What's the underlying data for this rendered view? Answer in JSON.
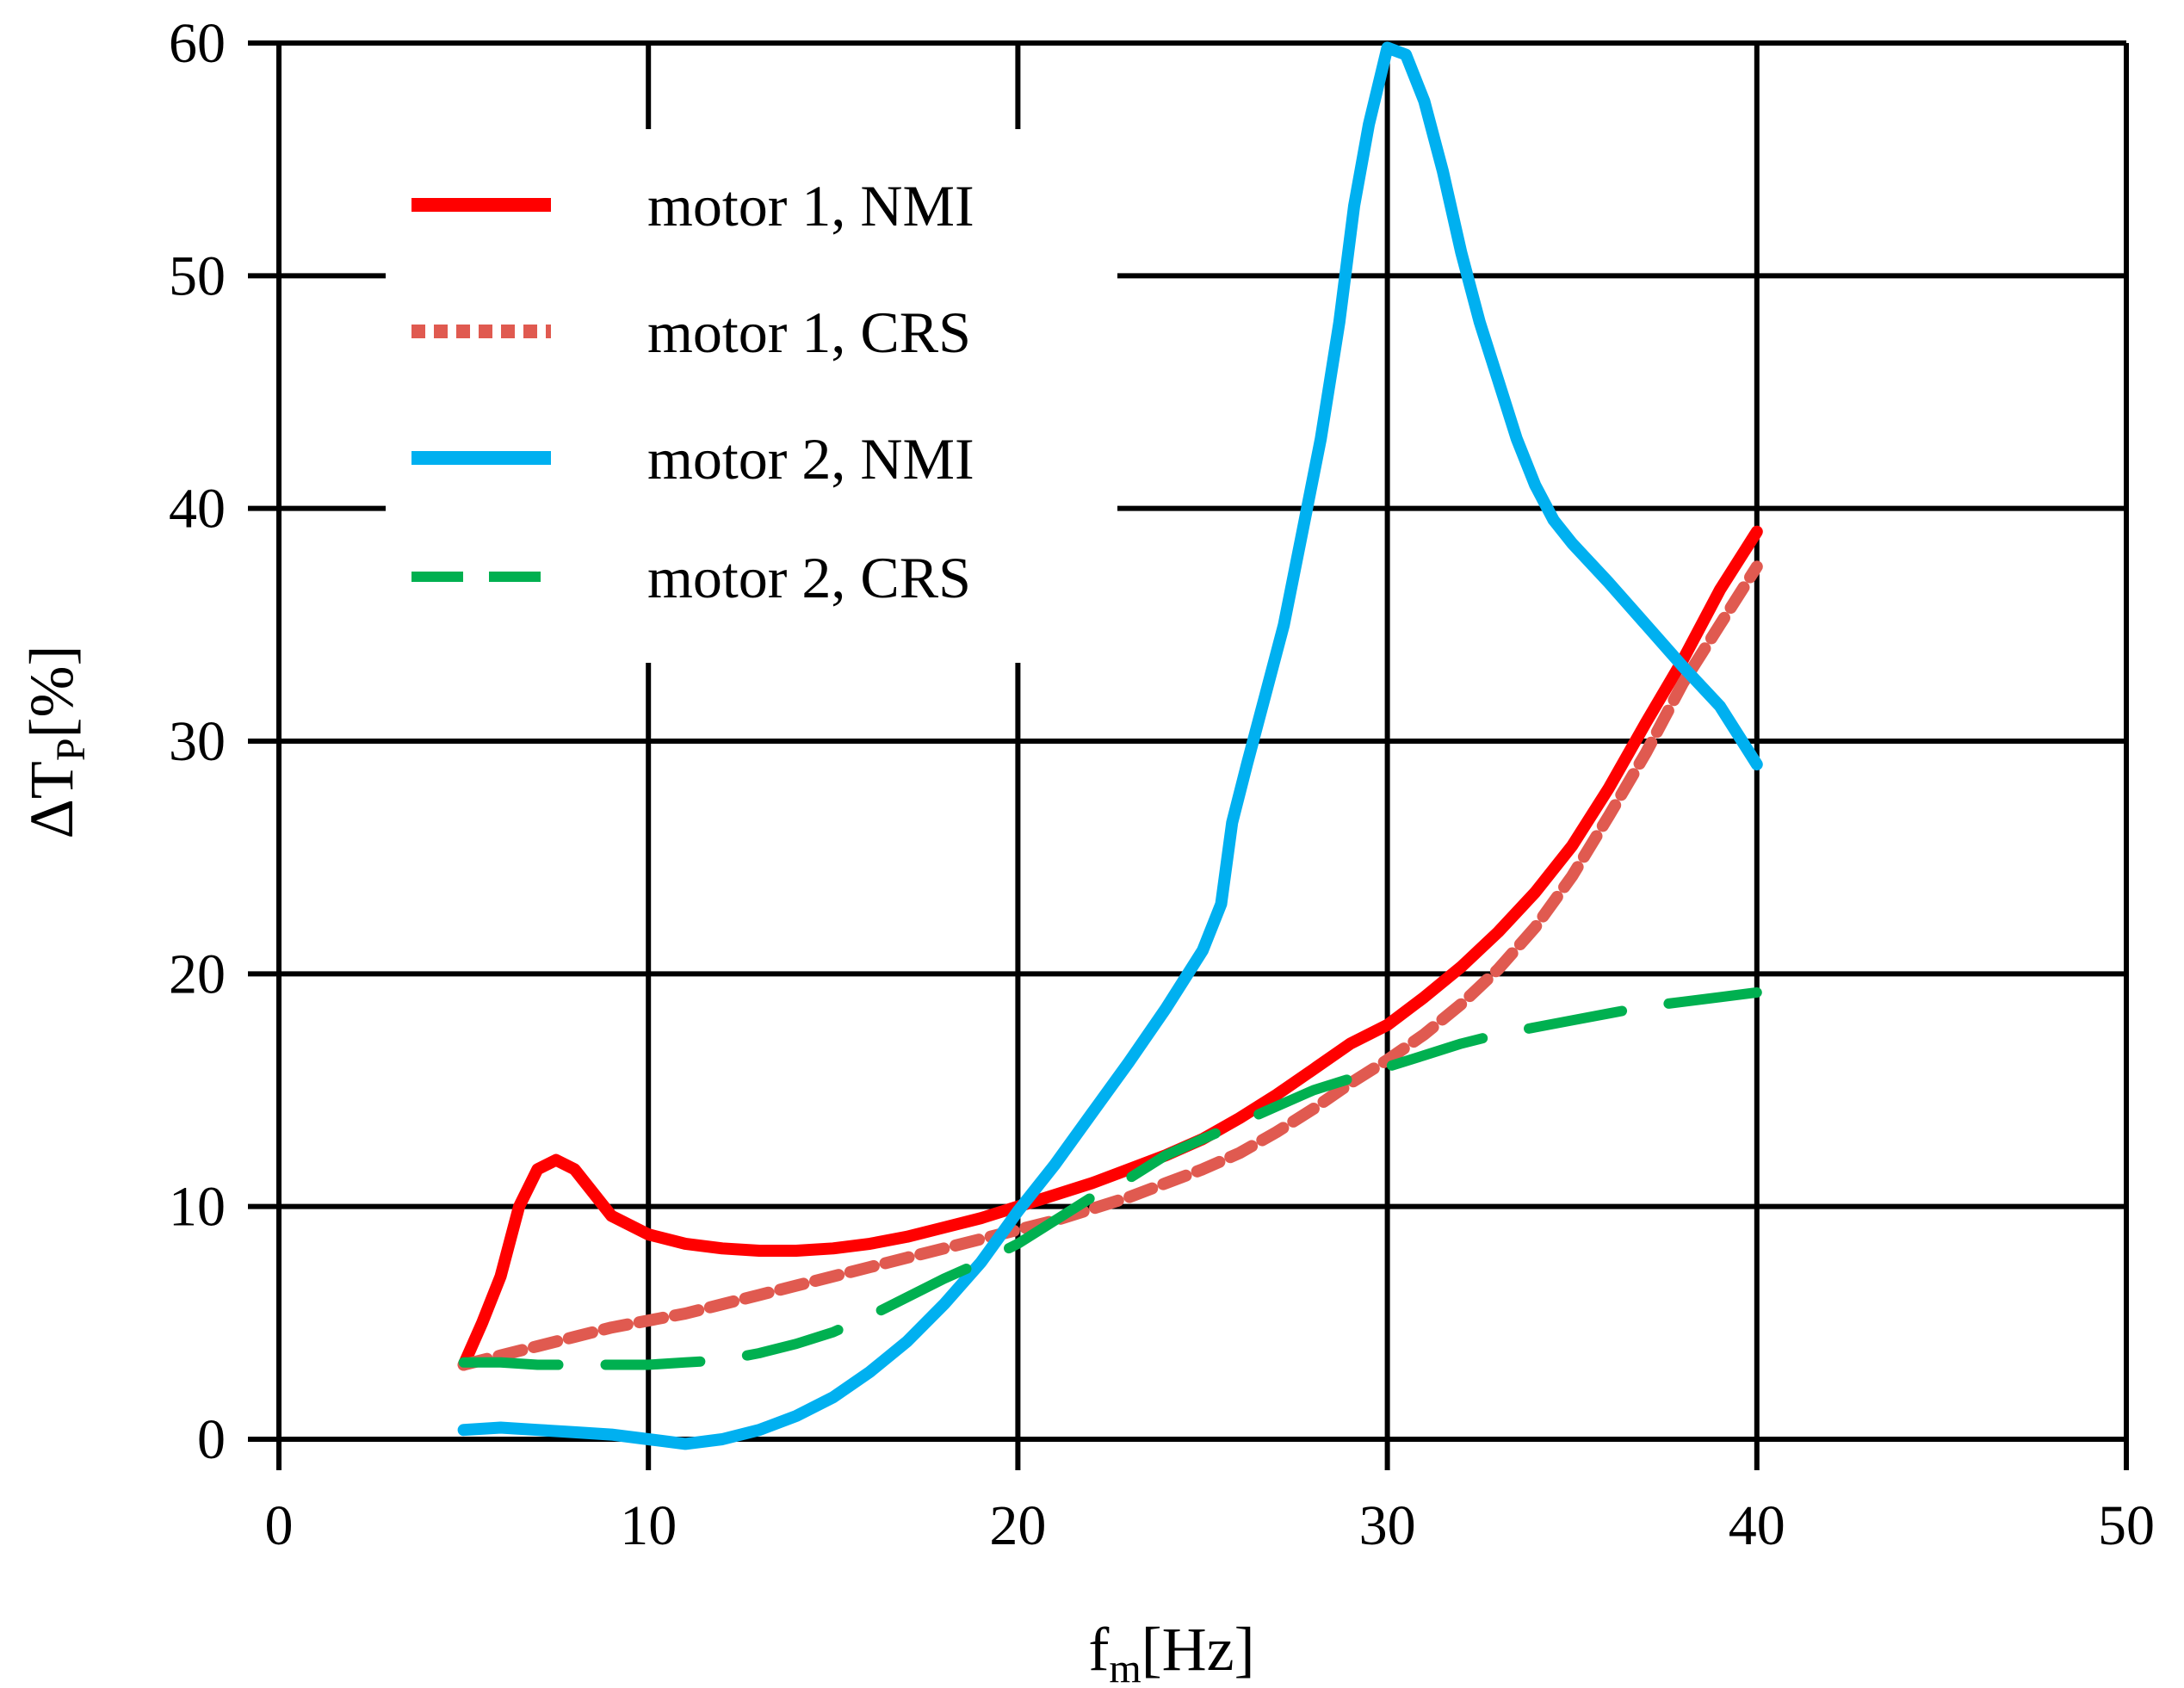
{
  "chart_data": {
    "type": "line",
    "title": "",
    "xlabel": {
      "main": "f",
      "sub": "m",
      "unit": "[Hz]"
    },
    "ylabel": {
      "prefix": "ΔT",
      "sub": "P",
      "unit": "[%]"
    },
    "xlim": [
      0,
      50
    ],
    "ylim": [
      0,
      60
    ],
    "grid": true,
    "x_ticks": [
      0,
      10,
      20,
      30,
      40,
      50
    ],
    "y_ticks": [
      0,
      10,
      20,
      30,
      40,
      50,
      60
    ],
    "legend_position": "top-left",
    "series": [
      {
        "name": "motor 1, NMI",
        "color": "#ff0000",
        "style": "solid",
        "points": [
          [
            5,
            3.2
          ],
          [
            5.5,
            5
          ],
          [
            6,
            7
          ],
          [
            6.5,
            10
          ],
          [
            7,
            11.6
          ],
          [
            7.5,
            12
          ],
          [
            8,
            11.6
          ],
          [
            8.5,
            10.6
          ],
          [
            9,
            9.6
          ],
          [
            10,
            8.8
          ],
          [
            11,
            8.4
          ],
          [
            12,
            8.2
          ],
          [
            13,
            8.1
          ],
          [
            14,
            8.1
          ],
          [
            15,
            8.2
          ],
          [
            16,
            8.4
          ],
          [
            17,
            8.7
          ],
          [
            18,
            9.1
          ],
          [
            19,
            9.5
          ],
          [
            20,
            10
          ],
          [
            21,
            10.5
          ],
          [
            22,
            11
          ],
          [
            23,
            11.6
          ],
          [
            24,
            12.2
          ],
          [
            25,
            12.9
          ],
          [
            26,
            13.8
          ],
          [
            27,
            14.8
          ],
          [
            28,
            15.9
          ],
          [
            29,
            17
          ],
          [
            30,
            17.8
          ],
          [
            31,
            19
          ],
          [
            32,
            20.3
          ],
          [
            33,
            21.8
          ],
          [
            34,
            23.5
          ],
          [
            35,
            25.5
          ],
          [
            36,
            28
          ],
          [
            37,
            30.8
          ],
          [
            38,
            33.5
          ],
          [
            39,
            36.5
          ],
          [
            40,
            39
          ]
        ]
      },
      {
        "name": "motor 1, CRS",
        "color": "#e05a50",
        "style": "dotted",
        "points": [
          [
            5,
            3.2
          ],
          [
            6,
            3.6
          ],
          [
            7,
            4
          ],
          [
            8,
            4.4
          ],
          [
            9,
            4.8
          ],
          [
            10,
            5.1
          ],
          [
            11,
            5.4
          ],
          [
            12,
            5.8
          ],
          [
            13,
            6.2
          ],
          [
            14,
            6.6
          ],
          [
            15,
            7
          ],
          [
            16,
            7.4
          ],
          [
            17,
            7.8
          ],
          [
            18,
            8.2
          ],
          [
            19,
            8.6
          ],
          [
            20,
            9
          ],
          [
            21,
            9.4
          ],
          [
            22,
            9.9
          ],
          [
            23,
            10.4
          ],
          [
            24,
            11
          ],
          [
            25,
            11.6
          ],
          [
            26,
            12.3
          ],
          [
            27,
            13.2
          ],
          [
            28,
            14.2
          ],
          [
            29,
            15.3
          ],
          [
            30,
            16.3
          ],
          [
            31,
            17.4
          ],
          [
            32,
            18.7
          ],
          [
            33,
            20.2
          ],
          [
            34,
            22
          ],
          [
            35,
            24.2
          ],
          [
            36,
            26.8
          ],
          [
            37,
            29.5
          ],
          [
            38,
            32.5
          ],
          [
            39,
            35
          ],
          [
            40,
            37.5
          ]
        ]
      },
      {
        "name": "motor 2, NMI",
        "color": "#00b0f0",
        "style": "solid",
        "points": [
          [
            5,
            0.4
          ],
          [
            6,
            0.5
          ],
          [
            7,
            0.4
          ],
          [
            8,
            0.3
          ],
          [
            9,
            0.2
          ],
          [
            10,
            0
          ],
          [
            11,
            -0.2
          ],
          [
            12,
            0
          ],
          [
            13,
            0.4
          ],
          [
            14,
            1
          ],
          [
            15,
            1.8
          ],
          [
            16,
            2.9
          ],
          [
            17,
            4.2
          ],
          [
            18,
            5.8
          ],
          [
            19,
            7.6
          ],
          [
            20,
            9.8
          ],
          [
            21,
            11.8
          ],
          [
            22,
            14
          ],
          [
            23,
            16.2
          ],
          [
            24,
            18.5
          ],
          [
            25,
            21
          ],
          [
            25.5,
            23
          ],
          [
            25.8,
            26.5
          ],
          [
            26.2,
            29
          ],
          [
            26.7,
            32
          ],
          [
            27.2,
            35
          ],
          [
            27.7,
            39
          ],
          [
            28.2,
            43
          ],
          [
            28.7,
            48
          ],
          [
            29.1,
            53
          ],
          [
            29.5,
            56.5
          ],
          [
            30,
            59.8
          ],
          [
            30.5,
            59.5
          ],
          [
            31,
            57.5
          ],
          [
            31.5,
            54.5
          ],
          [
            32,
            51
          ],
          [
            32.5,
            48
          ],
          [
            33,
            45.5
          ],
          [
            33.5,
            43
          ],
          [
            34,
            41
          ],
          [
            34.5,
            39.5
          ],
          [
            35,
            38.5
          ],
          [
            36,
            36.8
          ],
          [
            37,
            35
          ],
          [
            38,
            33.2
          ],
          [
            39,
            31.5
          ],
          [
            40,
            29
          ]
        ]
      },
      {
        "name": "motor 2, CRS",
        "color": "#00b050",
        "style": "dashed",
        "points": [
          [
            5,
            3.3
          ],
          [
            6,
            3.3
          ],
          [
            7,
            3.2
          ],
          [
            8,
            3.2
          ],
          [
            9,
            3.2
          ],
          [
            10,
            3.2
          ],
          [
            11,
            3.3
          ],
          [
            12,
            3.4
          ],
          [
            13,
            3.7
          ],
          [
            14,
            4.1
          ],
          [
            15,
            4.6
          ],
          [
            16,
            5.3
          ],
          [
            17,
            6.1
          ],
          [
            18,
            6.9
          ],
          [
            19,
            7.6
          ],
          [
            20,
            8.4
          ],
          [
            21,
            9.4
          ],
          [
            22,
            10.4
          ],
          [
            23,
            11.2
          ],
          [
            24,
            12.2
          ],
          [
            25,
            12.9
          ],
          [
            26,
            13.6
          ],
          [
            27,
            14.3
          ],
          [
            28,
            15
          ],
          [
            29,
            15.5
          ],
          [
            30,
            16
          ],
          [
            31,
            16.5
          ],
          [
            32,
            17
          ],
          [
            33,
            17.4
          ],
          [
            34,
            17.7
          ],
          [
            35,
            18
          ],
          [
            36,
            18.3
          ],
          [
            37,
            18.6
          ],
          [
            38,
            18.8
          ],
          [
            39,
            19
          ],
          [
            40,
            19.2
          ]
        ]
      }
    ]
  }
}
